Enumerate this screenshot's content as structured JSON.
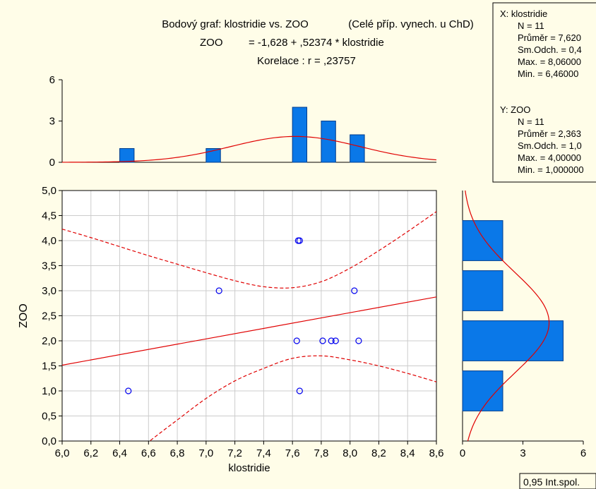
{
  "header": {
    "title": "Bodový graf: klostridie vs. ZOO",
    "subtitle": "(Celé příp. vynech. u ChD)",
    "equation_lhs": "ZOO",
    "equation_rhs": "= -1,628 + ,52374 * klostridie",
    "correlation": "Korelace :   r = ,23757"
  },
  "stats_box": {
    "x_header": "X:  klostridie",
    "x_lines": [
      "N = 11",
      "Průměr = 7,620",
      "Sm.Odch. = 0,4",
      "Max. = 8,06000",
      "Min. = 6,46000"
    ],
    "y_header": "Y:  ZOO",
    "y_lines": [
      "N = 11",
      "Průměr = 2,363",
      "Sm.Odch. = 1,0",
      "Max. = 4,00000",
      "Min. = 1,000000"
    ]
  },
  "legend": {
    "label": "0,95 Int.spol."
  },
  "colors": {
    "background": "#fffde8",
    "bar": "#0a78e8",
    "bar_stroke": "#003c8c",
    "point": "#0000ee",
    "fit": "#e00000",
    "grid": "#cccccc"
  },
  "chart_data": [
    {
      "type": "scatter",
      "xlabel": "klostridie",
      "ylabel": "ZOO",
      "xlim": [
        6.0,
        8.6
      ],
      "ylim": [
        0.0,
        5.0
      ],
      "x_ticks": [
        "6,0",
        "6,2",
        "6,4",
        "6,6",
        "6,8",
        "7,0",
        "7,2",
        "7,4",
        "7,6",
        "7,8",
        "8,0",
        "8,2",
        "8,4",
        "8,6"
      ],
      "y_ticks": [
        "0,0",
        "0,5",
        "1,0",
        "1,5",
        "2,0",
        "2,5",
        "3,0",
        "3,5",
        "4,0",
        "4,5",
        "5,0"
      ],
      "grid": true,
      "points": [
        [
          6.46,
          1
        ],
        [
          7.09,
          3
        ],
        [
          7.64,
          4
        ],
        [
          7.65,
          4
        ],
        [
          7.63,
          2
        ],
        [
          7.81,
          2
        ],
        [
          7.87,
          2
        ],
        [
          7.9,
          2
        ],
        [
          8.03,
          3
        ],
        [
          8.06,
          2
        ],
        [
          7.65,
          1
        ]
      ],
      "regression": {
        "intercept": -1.628,
        "slope": 0.52374
      },
      "confidence_band": {
        "x": [
          6.0,
          6.2,
          6.4,
          6.6,
          6.8,
          7.0,
          7.2,
          7.4,
          7.6,
          7.8,
          8.0,
          8.2,
          8.4,
          8.6
        ],
        "upper": [
          4.23,
          4.06,
          3.88,
          3.7,
          3.53,
          3.36,
          3.2,
          3.08,
          3.06,
          3.18,
          3.45,
          3.8,
          4.18,
          4.58
        ],
        "lower": [
          -1.2,
          -0.85,
          -0.5,
          -0.02,
          0.42,
          0.85,
          1.2,
          1.45,
          1.65,
          1.7,
          1.62,
          1.5,
          1.35,
          1.18
        ]
      }
    },
    {
      "type": "bar",
      "orientation": "vertical",
      "variable": "klostridie",
      "ylim": [
        0,
        6
      ],
      "y_ticks": [
        "0",
        "3",
        "6"
      ],
      "bins": [
        {
          "from": 6.4,
          "to": 6.5,
          "count": 1
        },
        {
          "from": 7.0,
          "to": 7.1,
          "count": 1
        },
        {
          "from": 7.6,
          "to": 7.7,
          "count": 4
        },
        {
          "from": 7.8,
          "to": 7.9,
          "count": 3
        },
        {
          "from": 8.0,
          "to": 8.1,
          "count": 2
        }
      ],
      "normal_curve": {
        "mean": 7.62,
        "sd": 0.45,
        "peak": 1.88
      }
    },
    {
      "type": "bar",
      "orientation": "horizontal",
      "variable": "ZOO",
      "xlim": [
        0,
        6
      ],
      "x_ticks": [
        "0",
        "3",
        "6"
      ],
      "bins": [
        {
          "from": 0.6,
          "to": 1.4,
          "count": 2
        },
        {
          "from": 1.6,
          "to": 2.4,
          "count": 5
        },
        {
          "from": 2.6,
          "to": 3.4,
          "count": 2
        },
        {
          "from": 3.6,
          "to": 4.4,
          "count": 2
        }
      ],
      "normal_curve": {
        "mean": 2.363,
        "sd": 1.0,
        "peak": 4.3
      }
    }
  ]
}
